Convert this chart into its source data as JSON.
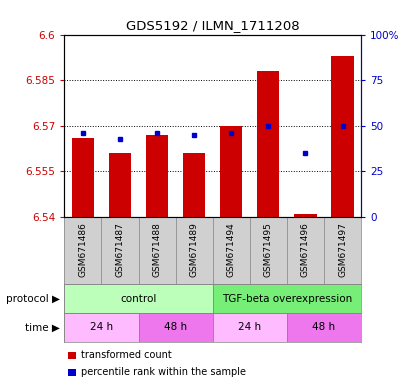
{
  "title": "GDS5192 / ILMN_1711208",
  "samples": [
    "GSM671486",
    "GSM671487",
    "GSM671488",
    "GSM671489",
    "GSM671494",
    "GSM671495",
    "GSM671496",
    "GSM671497"
  ],
  "bar_values": [
    6.566,
    6.561,
    6.567,
    6.561,
    6.57,
    6.588,
    6.541,
    6.593
  ],
  "blue_values": [
    46,
    43,
    46,
    45,
    46,
    50,
    35,
    50
  ],
  "ylim": [
    6.54,
    6.6
  ],
  "y2lim": [
    0,
    100
  ],
  "yticks": [
    6.54,
    6.555,
    6.57,
    6.585,
    6.6
  ],
  "ytick_labels": [
    "6.54",
    "6.555",
    "6.57",
    "6.585",
    "6.6"
  ],
  "y2ticks": [
    0,
    25,
    50,
    75,
    100
  ],
  "y2tick_labels": [
    "0",
    "25",
    "50",
    "75",
    "100%"
  ],
  "bar_color": "#cc0000",
  "blue_color": "#0000cc",
  "bar_width": 0.6,
  "protocol_groups": [
    {
      "label": "control",
      "start": 0,
      "end": 4,
      "color": "#bbffbb"
    },
    {
      "label": "TGF-beta overexpression",
      "start": 4,
      "end": 8,
      "color": "#77ee77"
    }
  ],
  "time_groups": [
    {
      "label": "24 h",
      "start": 0,
      "end": 2,
      "color": "#ffbbff"
    },
    {
      "label": "48 h",
      "start": 2,
      "end": 4,
      "color": "#ee77ee"
    },
    {
      "label": "24 h",
      "start": 4,
      "end": 6,
      "color": "#ffbbff"
    },
    {
      "label": "48 h",
      "start": 6,
      "end": 8,
      "color": "#ee77ee"
    }
  ],
  "legend_items": [
    {
      "label": "transformed count",
      "color": "#cc0000"
    },
    {
      "label": "percentile rank within the sample",
      "color": "#0000cc"
    }
  ],
  "sample_bg": "#d0d0d0",
  "plot_bg": "white"
}
